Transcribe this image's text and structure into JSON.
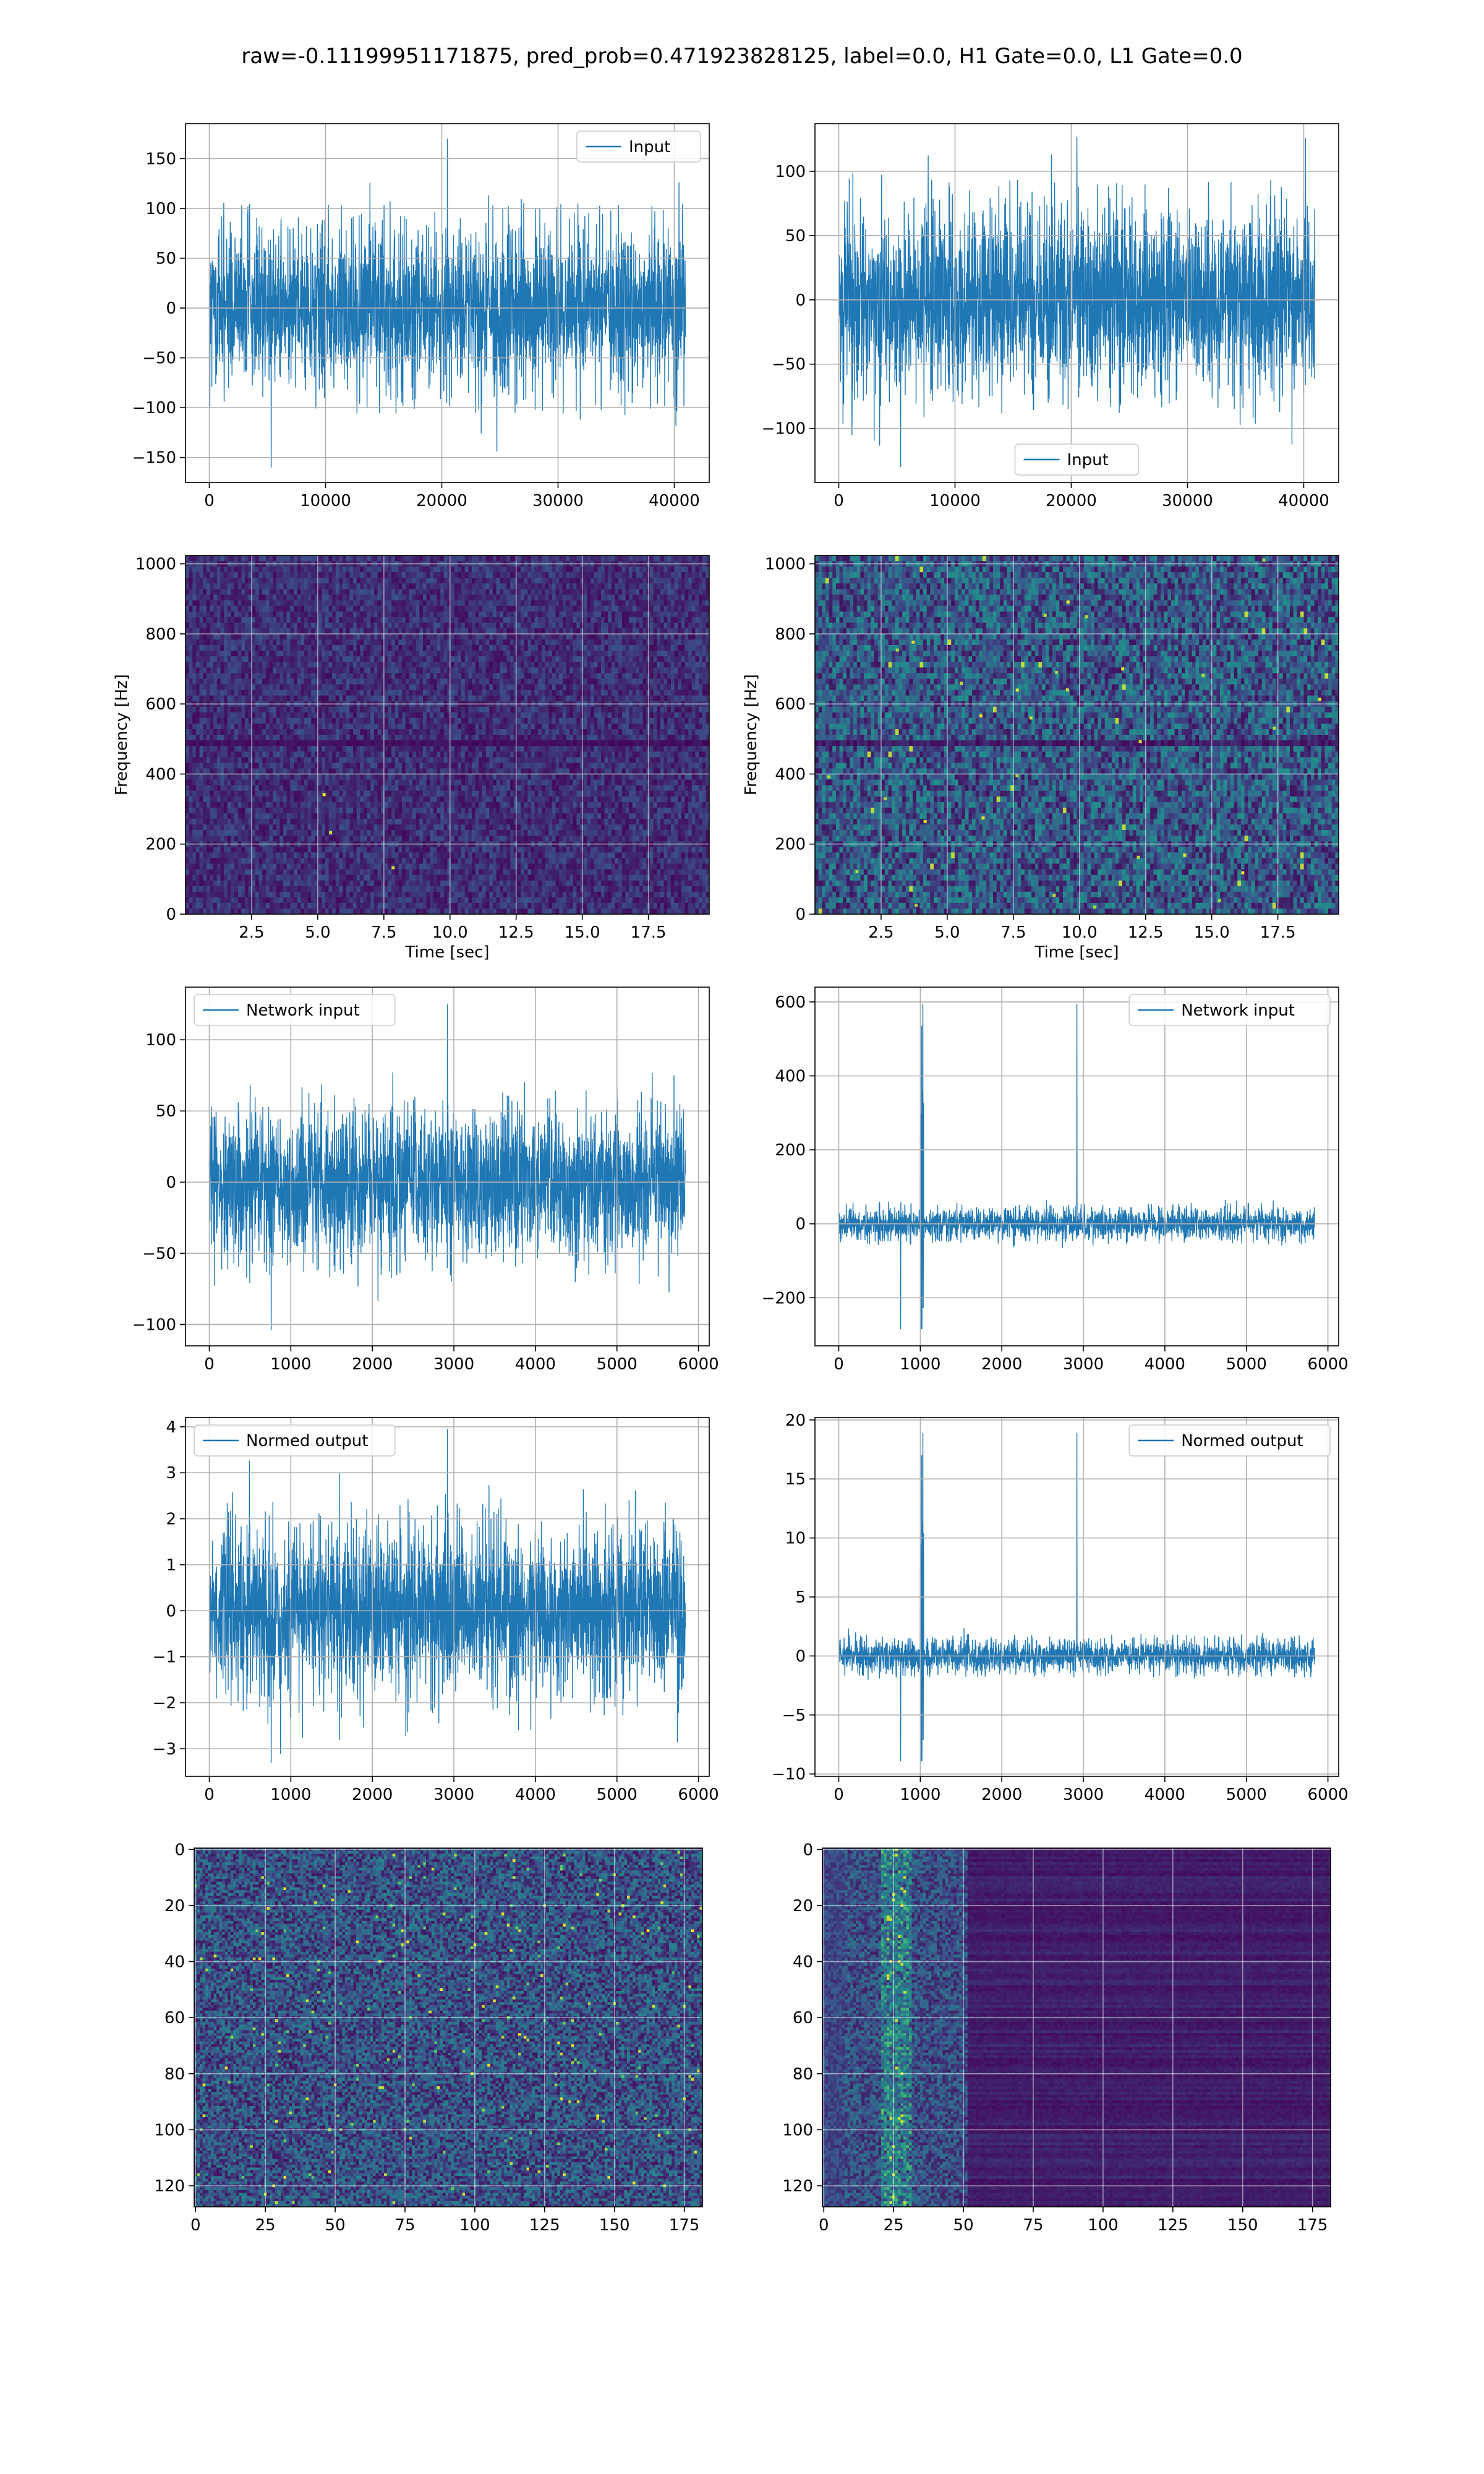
{
  "figure": {
    "suptitle": "raw=-0.11199951171875, pred_prob=0.471923828125, label=0.0, H1 Gate=0.0, L1 Gate=0.0"
  },
  "chart_data": [
    {
      "id": "h1_input",
      "type": "line",
      "title": "",
      "series": [
        {
          "name": "Input",
          "color": "#1f77b4",
          "n_points": 40960,
          "envelope_typical": [
            -85,
            85
          ],
          "min": -160,
          "max": 170
        }
      ],
      "legend": "Input",
      "legend_loc": "upper-right",
      "xlim": [
        -2048,
        43008
      ],
      "ylim": [
        -175,
        185
      ],
      "xticks": [
        0,
        10000,
        20000,
        30000,
        40000
      ],
      "xticklabels": [
        "0",
        "10000",
        "20000",
        "30000",
        "40000"
      ],
      "yticks": [
        -150,
        -100,
        -50,
        0,
        50,
        100,
        150
      ],
      "yticklabels": [
        "−150",
        "−100",
        "−50",
        "0",
        "50",
        "100",
        "150"
      ],
      "xlabel": "",
      "ylabel": "",
      "grid": true
    },
    {
      "id": "l1_input",
      "type": "line",
      "title": "",
      "series": [
        {
          "name": "Input",
          "color": "#1f77b4",
          "n_points": 40960,
          "envelope_typical": [
            -75,
            75
          ],
          "min": -130,
          "max": 127
        }
      ],
      "legend": "Input",
      "legend_loc": "lower-center",
      "xlim": [
        -2048,
        43008
      ],
      "ylim": [
        -142,
        137
      ],
      "xticks": [
        0,
        10000,
        20000,
        30000,
        40000
      ],
      "xticklabels": [
        "0",
        "10000",
        "20000",
        "30000",
        "40000"
      ],
      "yticks": [
        -100,
        -50,
        0,
        50,
        100
      ],
      "yticklabels": [
        "−100",
        "−50",
        "0",
        "50",
        "100"
      ],
      "xlabel": "",
      "ylabel": "",
      "grid": true
    },
    {
      "id": "h1_spectrogram",
      "type": "heatmap",
      "title": "",
      "xlim": [
        0,
        19.8
      ],
      "ylim": [
        0,
        1024
      ],
      "xticks": [
        2.5,
        5.0,
        7.5,
        10.0,
        12.5,
        15.0,
        17.5
      ],
      "xticklabels": [
        "2.5",
        "5.0",
        "7.5",
        "10.0",
        "12.5",
        "15.0",
        "17.5"
      ],
      "yticks": [
        0,
        200,
        400,
        600,
        800,
        1000
      ],
      "yticklabels": [
        "0",
        "200",
        "400",
        "600",
        "800",
        "1000"
      ],
      "xlabel": "Time [sec]",
      "ylabel": "Frequency [Hz]",
      "grid": true,
      "colormap": "viridis",
      "intensity": "low",
      "n_bright_spots": 3
    },
    {
      "id": "l1_spectrogram",
      "type": "heatmap",
      "title": "",
      "xlim": [
        0,
        19.8
      ],
      "ylim": [
        0,
        1024
      ],
      "xticks": [
        2.5,
        5.0,
        7.5,
        10.0,
        12.5,
        15.0,
        17.5
      ],
      "xticklabels": [
        "2.5",
        "5.0",
        "7.5",
        "10.0",
        "12.5",
        "15.0",
        "17.5"
      ],
      "yticks": [
        0,
        200,
        400,
        600,
        800,
        1000
      ],
      "yticklabels": [
        "0",
        "200",
        "400",
        "600",
        "800",
        "1000"
      ],
      "xlabel": "Time [sec]",
      "ylabel": "Frequency [Hz]",
      "grid": true,
      "colormap": "viridis",
      "intensity": "high",
      "n_bright_spots": 30
    },
    {
      "id": "h1_network_input",
      "type": "line",
      "title": "",
      "series": [
        {
          "name": "Network input",
          "color": "#1f77b4",
          "n_points": 5840,
          "envelope_typical": [
            -55,
            55
          ],
          "min": -104,
          "max": 125
        }
      ],
      "legend": "Network input",
      "legend_loc": "upper-left",
      "xlim": [
        -292,
        6132
      ],
      "ylim": [
        -115,
        137
      ],
      "xticks": [
        0,
        1000,
        2000,
        3000,
        4000,
        5000,
        6000
      ],
      "xticklabels": [
        "0",
        "1000",
        "2000",
        "3000",
        "4000",
        "5000",
        "6000"
      ],
      "yticks": [
        -100,
        -50,
        0,
        50,
        100
      ],
      "yticklabels": [
        "−100",
        "−50",
        "0",
        "50",
        "100"
      ],
      "xlabel": "",
      "ylabel": "",
      "grid": true
    },
    {
      "id": "l1_network_input",
      "type": "line",
      "title": "",
      "series": [
        {
          "name": "Network input",
          "color": "#1f77b4",
          "n_points": 5840,
          "envelope_typical": [
            -45,
            45
          ],
          "min": -285,
          "max": 595,
          "glitch_at": 1000
        }
      ],
      "legend": "Network input",
      "legend_loc": "upper-right",
      "xlim": [
        -292,
        6132
      ],
      "ylim": [
        -330,
        640
      ],
      "xticks": [
        0,
        1000,
        2000,
        3000,
        4000,
        5000,
        6000
      ],
      "xticklabels": [
        "0",
        "1000",
        "2000",
        "3000",
        "4000",
        "5000",
        "6000"
      ],
      "yticks": [
        -200,
        0,
        200,
        400,
        600
      ],
      "yticklabels": [
        "−200",
        "0",
        "200",
        "400",
        "600"
      ],
      "xlabel": "",
      "ylabel": "",
      "grid": true
    },
    {
      "id": "h1_normed_output",
      "type": "line",
      "title": "",
      "series": [
        {
          "name": "Normed output",
          "color": "#1f77b4",
          "n_points": 5840,
          "envelope_typical": [
            -1.9,
            1.9
          ],
          "min": -3.3,
          "max": 3.95
        }
      ],
      "legend": "Normed output",
      "legend_loc": "upper-left",
      "xlim": [
        -292,
        6132
      ],
      "ylim": [
        -3.6,
        4.2
      ],
      "xticks": [
        0,
        1000,
        2000,
        3000,
        4000,
        5000,
        6000
      ],
      "xticklabels": [
        "0",
        "1000",
        "2000",
        "3000",
        "4000",
        "5000",
        "6000"
      ],
      "yticks": [
        -3,
        -2,
        -1,
        0,
        1,
        2,
        3,
        4
      ],
      "yticklabels": [
        "−3",
        "−2",
        "−1",
        "0",
        "1",
        "2",
        "3",
        "4"
      ],
      "xlabel": "",
      "ylabel": "",
      "grid": true
    },
    {
      "id": "l1_normed_output",
      "type": "line",
      "title": "",
      "series": [
        {
          "name": "Normed output",
          "color": "#1f77b4",
          "n_points": 5840,
          "envelope_typical": [
            -1.5,
            1.5
          ],
          "min": -8.9,
          "max": 18.9,
          "glitch_at": 1000
        }
      ],
      "legend": "Normed output",
      "legend_loc": "upper-right",
      "xlim": [
        -292,
        6132
      ],
      "ylim": [
        -10.2,
        20.2
      ],
      "xticks": [
        0,
        1000,
        2000,
        3000,
        4000,
        5000,
        6000
      ],
      "xticklabels": [
        "0",
        "1000",
        "2000",
        "3000",
        "4000",
        "5000",
        "6000"
      ],
      "yticks": [
        -10,
        -5,
        0,
        5,
        10,
        15,
        20
      ],
      "yticklabels": [
        "−10",
        "−5",
        "0",
        "5",
        "10",
        "15",
        "20"
      ],
      "xlabel": "",
      "ylabel": "",
      "grid": true
    },
    {
      "id": "h1_image",
      "type": "heatmap",
      "title": "",
      "xlim": [
        -0.5,
        181.5
      ],
      "ylim": [
        127.5,
        -0.5
      ],
      "xticks": [
        0,
        25,
        50,
        75,
        100,
        125,
        150,
        175
      ],
      "xticklabels": [
        "0",
        "25",
        "50",
        "75",
        "100",
        "125",
        "150",
        "175"
      ],
      "yticks": [
        0,
        20,
        40,
        60,
        80,
        100,
        120
      ],
      "yticklabels": [
        "0",
        "20",
        "40",
        "60",
        "80",
        "100",
        "120"
      ],
      "xlabel": "",
      "ylabel": "",
      "grid": true,
      "colormap": "viridis",
      "pattern": "uniform-noise"
    },
    {
      "id": "l1_image",
      "type": "heatmap",
      "title": "",
      "xlim": [
        -0.5,
        181.5
      ],
      "ylim": [
        127.5,
        -0.5
      ],
      "xticks": [
        0,
        25,
        50,
        75,
        100,
        125,
        150,
        175
      ],
      "xticklabels": [
        "0",
        "25",
        "50",
        "75",
        "100",
        "125",
        "150",
        "175"
      ],
      "yticks": [
        0,
        20,
        40,
        60,
        80,
        100,
        120
      ],
      "yticklabels": [
        "0",
        "20",
        "40",
        "60",
        "80",
        "100",
        "120"
      ],
      "xlabel": "",
      "ylabel": "",
      "grid": true,
      "colormap": "viridis",
      "pattern": "bright-band-10-50"
    }
  ]
}
